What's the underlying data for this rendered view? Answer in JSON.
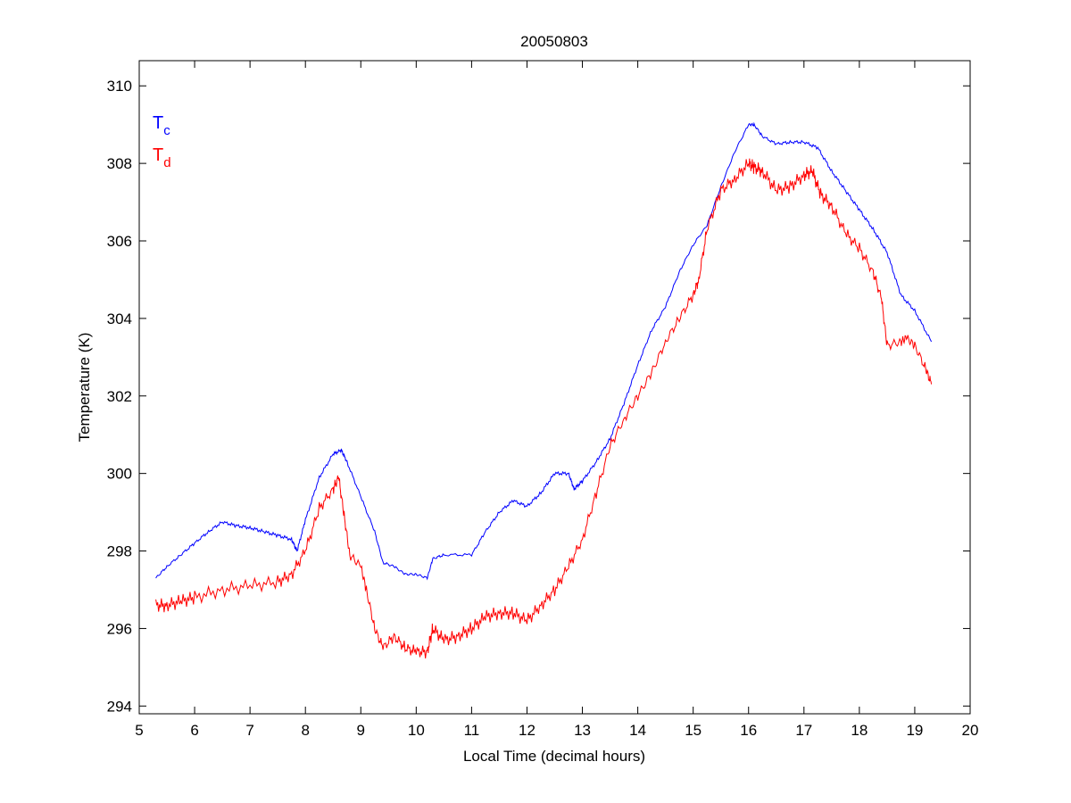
{
  "chart_data": {
    "type": "line",
    "title": "20050803",
    "xlabel": "Local Time (decimal hours)",
    "ylabel": "Temperature (K)",
    "xlim": [
      5,
      20
    ],
    "ylim": [
      293.8,
      310.65
    ],
    "xticks": [
      "5",
      "6",
      "7",
      "8",
      "9",
      "10",
      "11",
      "12",
      "13",
      "14",
      "15",
      "16",
      "17",
      "18",
      "19",
      "20"
    ],
    "yticks": [
      "294",
      "296",
      "298",
      "300",
      "302",
      "304",
      "306",
      "308",
      "310"
    ],
    "grid": false,
    "legend_position": "top-left",
    "series": [
      {
        "name": "Tc",
        "label_main": "T",
        "label_sub": "c",
        "color": "#0000ff",
        "x": [
          5.3,
          5.5,
          5.75,
          6,
          6.25,
          6.5,
          6.75,
          7,
          7.25,
          7.5,
          7.75,
          7.85,
          8,
          8.25,
          8.5,
          8.65,
          8.75,
          9,
          9.25,
          9.4,
          9.6,
          9.8,
          10,
          10.2,
          10.3,
          10.5,
          11,
          11.25,
          11.5,
          11.75,
          12,
          12.25,
          12.5,
          12.75,
          12.85,
          13,
          13.25,
          13.5,
          13.75,
          14,
          14.25,
          14.5,
          14.75,
          15,
          15.25,
          15.5,
          15.75,
          16,
          16.1,
          16.25,
          16.5,
          16.75,
          17,
          17.25,
          17.5,
          17.75,
          18,
          18.25,
          18.5,
          18.75,
          19,
          19.3
        ],
        "y": [
          297.3,
          297.6,
          297.9,
          298.2,
          298.5,
          298.75,
          298.65,
          298.6,
          298.5,
          298.4,
          298.3,
          298.0,
          298.8,
          299.9,
          300.5,
          300.6,
          300.3,
          299.4,
          298.5,
          297.7,
          297.6,
          297.4,
          297.4,
          297.3,
          297.8,
          297.9,
          297.9,
          298.5,
          299.0,
          299.3,
          299.15,
          299.5,
          300.0,
          300.0,
          299.6,
          299.8,
          300.3,
          300.9,
          301.8,
          302.8,
          303.7,
          304.3,
          305.2,
          305.9,
          306.4,
          307.4,
          308.3,
          309.0,
          309.0,
          308.7,
          308.5,
          308.55,
          308.55,
          308.4,
          307.8,
          307.3,
          306.8,
          306.3,
          305.7,
          304.6,
          304.2,
          303.4
        ]
      },
      {
        "name": "Td",
        "label_main": "T",
        "label_sub": "d",
        "color": "#ff0000",
        "x": [
          5.3,
          5.5,
          5.75,
          6,
          6.5,
          7,
          7.5,
          7.75,
          8,
          8.25,
          8.5,
          8.6,
          8.7,
          8.8,
          9,
          9.1,
          9.25,
          9.4,
          9.6,
          9.8,
          10,
          10.2,
          10.3,
          10.5,
          10.75,
          11,
          11.25,
          11.5,
          11.75,
          12,
          12.25,
          12.5,
          12.75,
          13,
          13.25,
          13.5,
          13.75,
          14,
          14.25,
          14.5,
          14.75,
          15,
          15.1,
          15.25,
          15.5,
          15.75,
          16,
          16.1,
          16.25,
          16.5,
          16.75,
          17,
          17.15,
          17.3,
          17.5,
          17.75,
          18,
          18.25,
          18.4,
          18.5,
          18.75,
          18.85,
          19,
          19.2,
          19.3
        ],
        "y": [
          296.6,
          296.6,
          296.7,
          296.8,
          297.0,
          297.1,
          297.2,
          297.4,
          298.0,
          299.1,
          299.6,
          299.9,
          298.9,
          297.9,
          297.6,
          297.0,
          296.0,
          295.5,
          295.8,
          295.5,
          295.4,
          295.4,
          296.0,
          295.7,
          295.8,
          296.0,
          296.3,
          296.4,
          296.4,
          296.2,
          296.6,
          297.0,
          297.6,
          298.3,
          299.5,
          300.7,
          301.4,
          302.0,
          302.6,
          303.4,
          304.0,
          304.6,
          305.0,
          306.3,
          307.3,
          307.6,
          308.0,
          307.9,
          307.8,
          307.3,
          307.4,
          307.7,
          307.8,
          307.2,
          306.9,
          306.2,
          305.8,
          305.2,
          304.5,
          303.3,
          303.4,
          303.5,
          303.3,
          302.7,
          302.3
        ]
      }
    ]
  }
}
